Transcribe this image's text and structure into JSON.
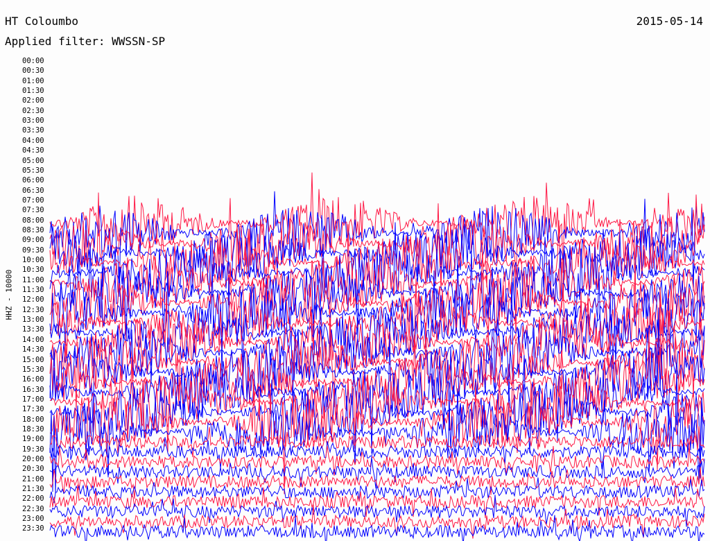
{
  "header": {
    "station": "HT Coloumbo",
    "date": "2015-05-14",
    "filter_label": "Applied filter: WWSSN-SP"
  },
  "channel_label": "HHZ - 10000",
  "chart_data": {
    "type": "line",
    "title": "HT Coloumbo",
    "subtitle": "Applied filter: WWSSN-SP",
    "ylabel": "HHZ - 10000",
    "xlabel": "",
    "row_labels": [
      "00:00",
      "00:30",
      "01:00",
      "01:30",
      "02:00",
      "02:30",
      "03:00",
      "03:30",
      "04:00",
      "04:30",
      "05:00",
      "05:30",
      "06:00",
      "06:30",
      "07:00",
      "07:30",
      "08:00",
      "08:30",
      "09:00",
      "09:30",
      "10:00",
      "10:30",
      "11:00",
      "11:30",
      "12:00",
      "12:30",
      "13:00",
      "13:30",
      "14:00",
      "14:30",
      "15:00",
      "15:30",
      "16:00",
      "16:30",
      "17:00",
      "17:30",
      "18:00",
      "18:30",
      "19:00",
      "19:30",
      "20:00",
      "20:30",
      "21:00",
      "21:30",
      "22:00",
      "22:30",
      "23:00",
      "23:30"
    ],
    "series_colors": [
      "#ff1744",
      "#0000ff"
    ],
    "first_trace_row": "08:00",
    "grid": false
  }
}
